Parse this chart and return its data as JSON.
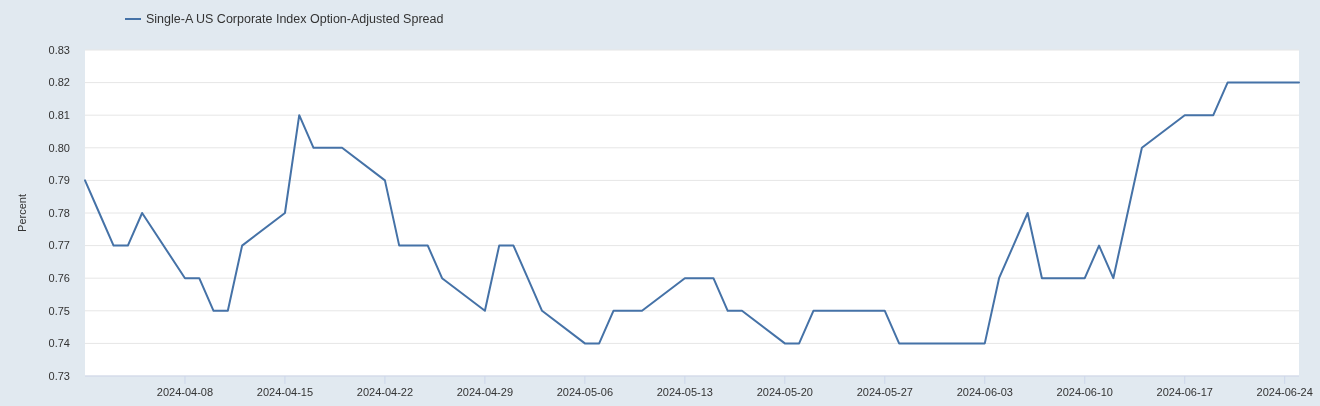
{
  "chart_data": {
    "type": "line",
    "ylabel": "Percent",
    "x": [
      "2024-04-01",
      "2024-04-02",
      "2024-04-03",
      "2024-04-04",
      "2024-04-05",
      "2024-04-08",
      "2024-04-09",
      "2024-04-10",
      "2024-04-11",
      "2024-04-12",
      "2024-04-15",
      "2024-04-16",
      "2024-04-17",
      "2024-04-18",
      "2024-04-19",
      "2024-04-22",
      "2024-04-23",
      "2024-04-24",
      "2024-04-25",
      "2024-04-26",
      "2024-04-29",
      "2024-04-30",
      "2024-05-01",
      "2024-05-02",
      "2024-05-03",
      "2024-05-06",
      "2024-05-07",
      "2024-05-08",
      "2024-05-09",
      "2024-05-10",
      "2024-05-13",
      "2024-05-14",
      "2024-05-15",
      "2024-05-16",
      "2024-05-17",
      "2024-05-20",
      "2024-05-21",
      "2024-05-22",
      "2024-05-23",
      "2024-05-24",
      "2024-05-27",
      "2024-05-28",
      "2024-05-29",
      "2024-05-30",
      "2024-05-31",
      "2024-06-03",
      "2024-06-04",
      "2024-06-05",
      "2024-06-06",
      "2024-06-07",
      "2024-06-10",
      "2024-06-11",
      "2024-06-12",
      "2024-06-13",
      "2024-06-14",
      "2024-06-17",
      "2024-06-18",
      "2024-06-19",
      "2024-06-20",
      "2024-06-21",
      "2024-06-24",
      "2024-06-25"
    ],
    "series": [
      {
        "name": "Single-A US Corporate Index Option-Adjusted Spread",
        "color": "#4572a7",
        "values": [
          0.79,
          0.78,
          0.77,
          0.77,
          0.78,
          0.76,
          0.76,
          0.75,
          0.75,
          0.77,
          0.78,
          0.81,
          0.8,
          0.8,
          0.8,
          0.79,
          0.77,
          0.77,
          0.77,
          0.76,
          0.75,
          0.77,
          0.77,
          0.76,
          0.75,
          0.74,
          0.74,
          0.75,
          0.75,
          0.75,
          0.76,
          0.76,
          0.76,
          0.75,
          0.75,
          0.74,
          0.74,
          0.75,
          0.75,
          0.75,
          0.75,
          0.74,
          0.74,
          0.74,
          0.74,
          0.74,
          0.76,
          0.77,
          0.78,
          0.76,
          0.76,
          0.77,
          0.76,
          0.78,
          0.8,
          0.81,
          0.81,
          0.81,
          0.82,
          0.82,
          0.82,
          0.82
        ]
      }
    ],
    "xlim": [
      "2024-04-01",
      "2024-06-25"
    ],
    "xticks": [
      "2024-04-08",
      "2024-04-15",
      "2024-04-22",
      "2024-04-29",
      "2024-05-06",
      "2024-05-13",
      "2024-05-20",
      "2024-05-27",
      "2024-06-03",
      "2024-06-10",
      "2024-06-17",
      "2024-06-24"
    ],
    "ylim": [
      0.73,
      0.83
    ],
    "yticks": [
      0.73,
      0.74,
      0.75,
      0.76,
      0.77,
      0.78,
      0.79,
      {
        "value": 0.8,
        "label": "0.80"
      },
      0.81,
      0.82,
      0.83
    ],
    "grid": "y",
    "legend": "top left"
  }
}
